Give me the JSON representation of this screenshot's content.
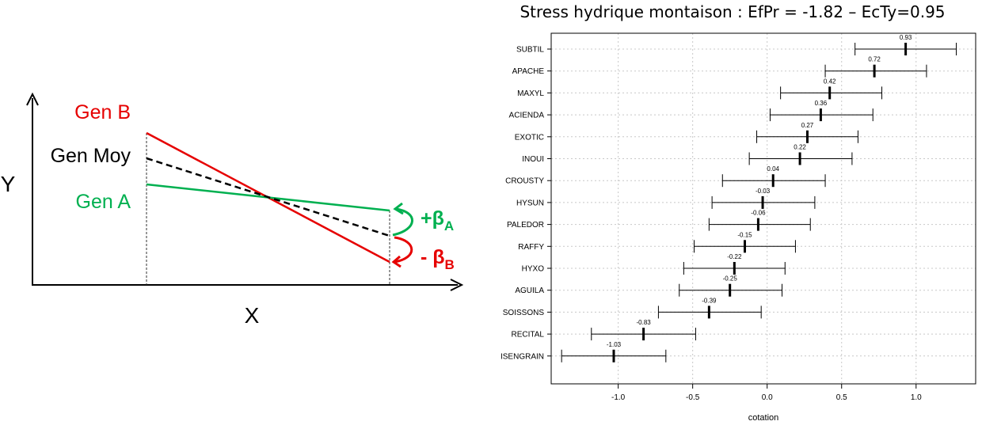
{
  "diagram": {
    "y_axis_label": "Y",
    "x_axis_label": "X",
    "gen_b_label": "Gen B",
    "gen_moy_label": "Gen Moy",
    "gen_a_label": "Gen A",
    "beta_a_prefix": "+β",
    "beta_a_subscript": "A",
    "beta_b_prefix": "- β",
    "beta_b_subscript": "B",
    "colors": {
      "gen_b": "#e60000",
      "gen_a": "#00b050",
      "gen_moy": "#000000"
    }
  },
  "chart_data": {
    "type": "dot-errorbar",
    "title": "Stress hydrique montaison : EfPr = -1.82 – EcTy=0.95",
    "xlabel": "cotation",
    "ylabel": "",
    "xlim": [
      -1.45,
      1.4
    ],
    "xticks": [
      -1.0,
      -0.5,
      0.0,
      0.5,
      1.0
    ],
    "xtick_labels": [
      "-1.0",
      "-0.5",
      "0.0",
      "0.5",
      "1.0"
    ],
    "grid": true,
    "categories": [
      "SUBTIL",
      "APACHE",
      "MAXYL",
      "ACIENDA",
      "EXOTIC",
      "INOUI",
      "CROUSTY",
      "HYSUN",
      "PALEDOR",
      "RAFFY",
      "HYXO",
      "AGUILA",
      "SOISSONS",
      "RECITAL",
      "ISENGRAIN"
    ],
    "values": [
      0.93,
      0.72,
      0.42,
      0.36,
      0.27,
      0.22,
      0.04,
      -0.03,
      -0.06,
      -0.15,
      -0.22,
      -0.25,
      -0.39,
      -0.83,
      -1.03
    ],
    "value_labels": [
      "0.93",
      "0.72",
      "0.42",
      "0.36",
      "0.27",
      "0.22",
      "0.04",
      "-0.03",
      "-0.06",
      "-0.15",
      "-0.22",
      "-0.25",
      "-0.39",
      "-0.83",
      "-1.03"
    ],
    "lower": [
      0.59,
      0.39,
      0.09,
      0.02,
      -0.07,
      -0.12,
      -0.3,
      -0.37,
      -0.39,
      -0.49,
      -0.56,
      -0.59,
      -0.73,
      -1.18,
      -1.38
    ],
    "upper": [
      1.27,
      1.07,
      0.77,
      0.71,
      0.61,
      0.57,
      0.39,
      0.32,
      0.29,
      0.19,
      0.12,
      0.1,
      -0.04,
      -0.48,
      -0.68
    ]
  }
}
